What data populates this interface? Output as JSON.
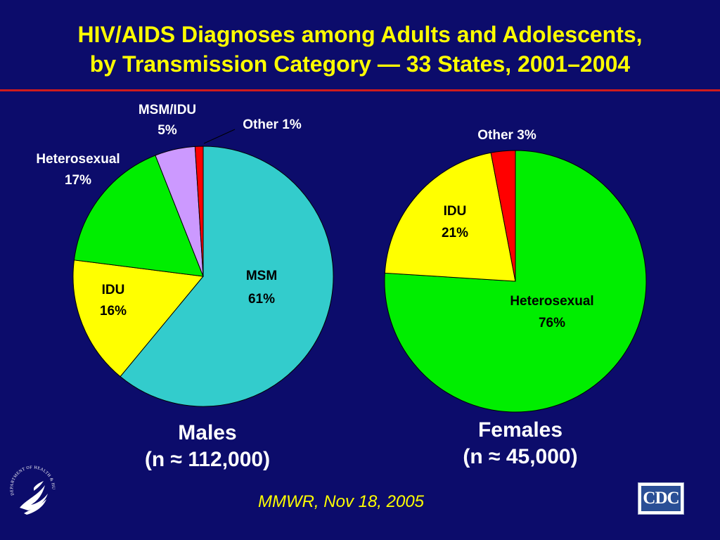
{
  "slide": {
    "title_line1": "HIV/AIDS Diagnoses among Adults and Adolescents,",
    "title_line2": "by Transmission Category — 33 States, 2001–2004",
    "source": "MMWR, Nov 18, 2005",
    "cdc_logo_text": "CDC",
    "hhs_seal_text": "DEPARTMENT OF HEALTH & HUMAN SERVICES · USA"
  },
  "colors": {
    "background": "#0c0c6b",
    "title": "#ffff00",
    "rule": "#d01c1c"
  },
  "chart_data": [
    {
      "type": "pie",
      "caption_line1": "Males",
      "caption_line2": "(n ≈ 112,000)",
      "slices": [
        {
          "label": "MSM",
          "percent": "61%",
          "value": 61,
          "color": "#33cccc"
        },
        {
          "label": "IDU",
          "percent": "16%",
          "value": 16,
          "color": "#ffff00"
        },
        {
          "label": "Heterosexual",
          "percent": "17%",
          "value": 17,
          "color": "#00ee00"
        },
        {
          "label": "MSM/IDU",
          "percent": "5%",
          "value": 5,
          "color": "#cc99ff"
        },
        {
          "label": "Other",
          "percent": "1%",
          "value": 1,
          "color": "#ff0000"
        }
      ]
    },
    {
      "type": "pie",
      "caption_line1": "Females",
      "caption_line2": "(n ≈ 45,000)",
      "slices": [
        {
          "label": "Heterosexual",
          "percent": "76%",
          "value": 76,
          "color": "#00ee00"
        },
        {
          "label": "IDU",
          "percent": "21%",
          "value": 21,
          "color": "#ffff00"
        },
        {
          "label": "Other",
          "percent": "3%",
          "value": 3,
          "color": "#ff0000"
        }
      ]
    }
  ]
}
